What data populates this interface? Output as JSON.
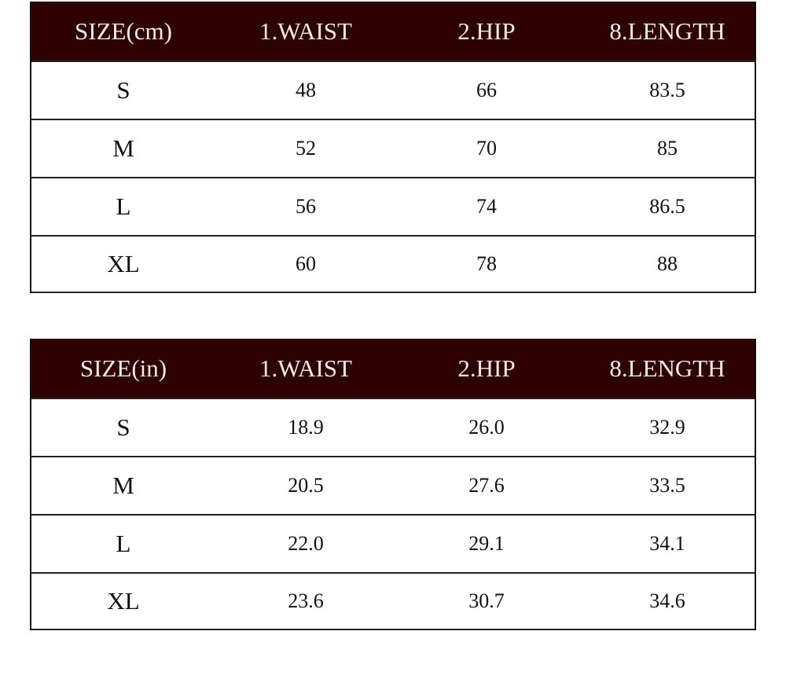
{
  "tables": [
    {
      "headers": [
        "SIZE(cm)",
        "1.WAIST",
        "2.HIP",
        "8.LENGTH"
      ],
      "rows": [
        [
          "S",
          "48",
          "66",
          "83.5"
        ],
        [
          "M",
          "52",
          "70",
          "85"
        ],
        [
          "L",
          "56",
          "74",
          "86.5"
        ],
        [
          "XL",
          "60",
          "78",
          "88"
        ]
      ]
    },
    {
      "headers": [
        "SIZE(in)",
        "1.WAIST",
        "2.HIP",
        "8.LENGTH"
      ],
      "rows": [
        [
          "S",
          "18.9",
          "26.0",
          "32.9"
        ],
        [
          "M",
          "20.5",
          "27.6",
          "33.5"
        ],
        [
          "L",
          "22.0",
          "29.1",
          "34.1"
        ],
        [
          "XL",
          "23.6",
          "30.7",
          "34.6"
        ]
      ]
    }
  ],
  "colors": {
    "header_bg": "#2e0202",
    "header_text": "#f4ecea"
  }
}
